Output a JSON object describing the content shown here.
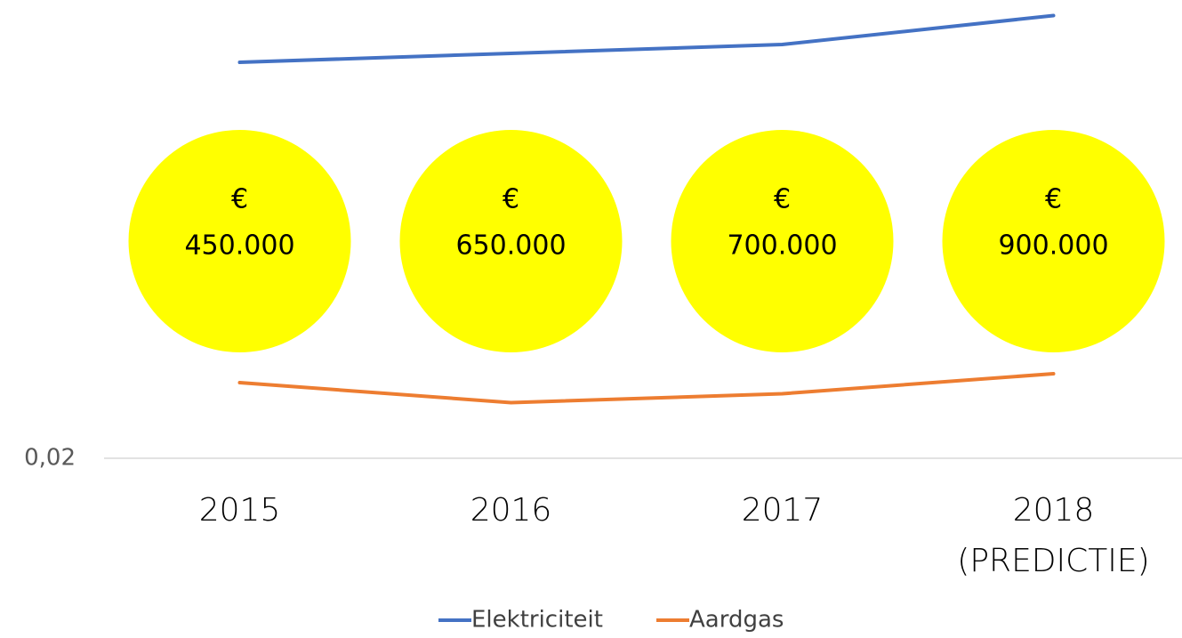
{
  "chart_data": {
    "type": "line",
    "categories": [
      "2015",
      "2016",
      "2017",
      "2018\n(PREDICTIE)"
    ],
    "series": [
      {
        "name": "Elektriciteit",
        "color": "#4472c4",
        "values": [
          0.198,
          0.202,
          0.206,
          0.219
        ]
      },
      {
        "name": "Aardgas",
        "color": "#ed7d31",
        "values": [
          0.054,
          0.045,
          0.049,
          0.058
        ]
      }
    ],
    "ylim": [
      0.02,
      0.22
    ],
    "yticks": [
      {
        "value": 0.02,
        "label": "0,02"
      }
    ],
    "grid": true,
    "legend": "bottom",
    "annotations": [
      {
        "symbol": "€",
        "amount": "450.000"
      },
      {
        "symbol": "€",
        "amount": "650.000"
      },
      {
        "symbol": "€",
        "amount": "700.000"
      },
      {
        "symbol": "€",
        "amount": "900.000"
      }
    ],
    "annotation_color": "#ffff00"
  }
}
